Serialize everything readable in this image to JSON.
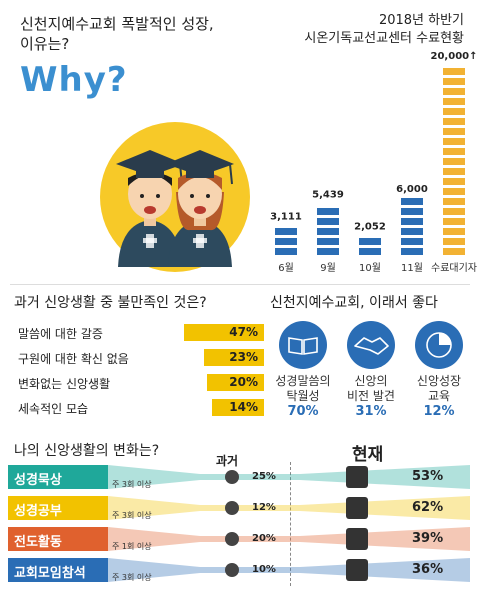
{
  "headline": {
    "line1": "신천지예수교회 폭발적인 성장,",
    "line2": "이유는?",
    "why": "Why?"
  },
  "bar_section": {
    "title1": "2018년 하반기",
    "title2": "시온기독교선교센터 수료현황"
  },
  "dissatisfaction": {
    "title": "과거 신앙생활 중 불만족인 것은?"
  },
  "good": {
    "title": "신천지예수교회, 이래서 좋다",
    "items": [
      {
        "label1": "성경말씀의",
        "label2": "탁월성",
        "pct": "70%",
        "icon": "book-icon"
      },
      {
        "label1": "신앙의",
        "label2": "비전 발견",
        "pct": "31%",
        "icon": "handshake-icon"
      },
      {
        "label1": "신앙성장",
        "label2": "교육",
        "pct": "12%",
        "icon": "pie-icon"
      }
    ]
  },
  "change": {
    "title": "나의 신앙생활의 변화는?",
    "past_label": "과거",
    "now_label": "현재",
    "rows": [
      {
        "label": "성경묵상",
        "freq": "주 3회 이상",
        "past": "25%",
        "now": "53%",
        "color": "#1fa89a"
      },
      {
        "label": "성경공부",
        "freq": "주 3회 이상",
        "past": "12%",
        "now": "62%",
        "color": "#f2c200"
      },
      {
        "label": "전도활동",
        "freq": "주 1회 이상",
        "past": "20%",
        "now": "39%",
        "color": "#e0612e"
      },
      {
        "label": "교회모임참석",
        "freq": "주 3회 이상",
        "past": "10%",
        "now": "36%",
        "color": "#2a6db5"
      }
    ]
  },
  "chart_data": [
    {
      "type": "bar",
      "title": "2018년 하반기 시온기독교선교센터 수료현황",
      "categories": [
        "6월",
        "9월",
        "10월",
        "11월",
        "수료대기자"
      ],
      "values": [
        3111,
        5439,
        2052,
        6000,
        20000
      ],
      "value_labels": [
        "3,111",
        "5,439",
        "2,052",
        "6,000",
        "20,000↑"
      ],
      "colors": [
        "#2a6db5",
        "#2a6db5",
        "#2a6db5",
        "#2a6db5",
        "#f2b233"
      ]
    },
    {
      "type": "bar",
      "title": "과거 신앙생활 중 불만족인 것은?",
      "categories": [
        "말씀에 대한 갈증",
        "구원에 대한 확신 없음",
        "변화없는 신앙생활",
        "세속적인 모습"
      ],
      "values": [
        47,
        23,
        20,
        14
      ],
      "value_labels": [
        "47%",
        "23%",
        "20%",
        "14%"
      ],
      "color": "#f2c200"
    }
  ]
}
